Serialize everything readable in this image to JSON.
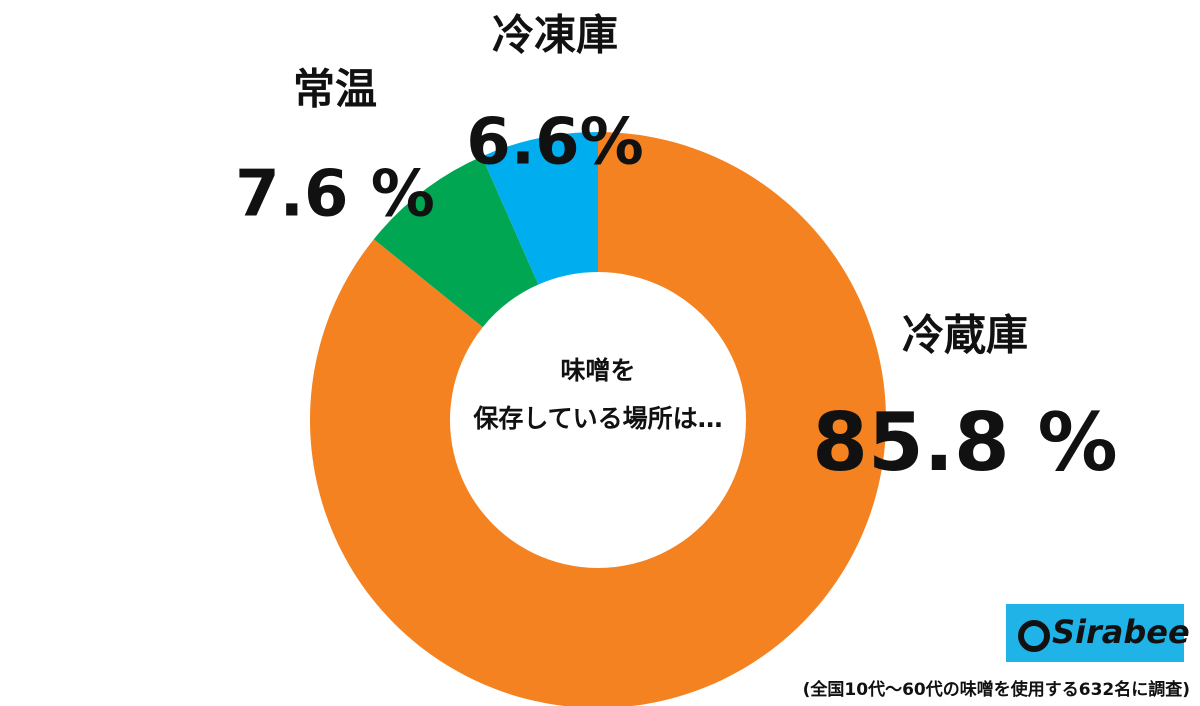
{
  "chart_data": {
    "type": "donut",
    "center_text": [
      "味噌を",
      "保存している場所は…"
    ],
    "categories": [
      "冷蔵庫",
      "常温",
      "冷凍庫"
    ],
    "values": [
      85.8,
      7.6,
      6.6
    ],
    "value_labels": [
      "85.8 %",
      "7.6 %",
      "6.6%"
    ],
    "colors": [
      "#f58220",
      "#00a651",
      "#00aeef"
    ],
    "note": "(全国10代〜60代の味噌を使用する632名に調査)",
    "logo": "Sirabee"
  }
}
